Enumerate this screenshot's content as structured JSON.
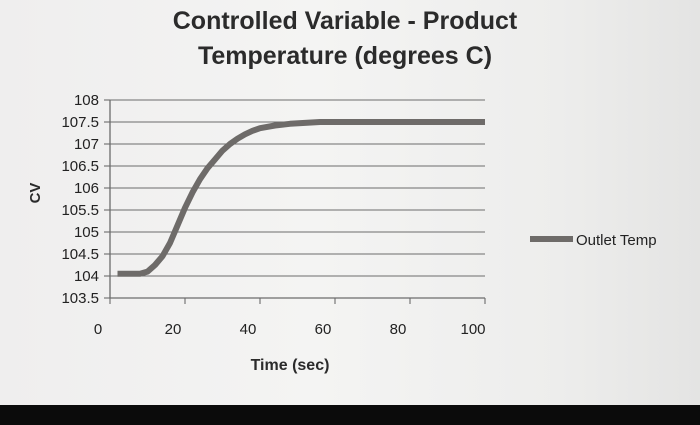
{
  "chart_data": {
    "type": "line",
    "title": [
      "Controlled Variable - Product",
      "Temperature (degrees C)"
    ],
    "xlabel": "Time (sec)",
    "ylabel": "CV",
    "xlim": [
      0,
      100
    ],
    "ylim": [
      103.5,
      108
    ],
    "x_ticks": [
      "0",
      "20",
      "40",
      "60",
      "80",
      "100"
    ],
    "y_ticks": [
      "103.5",
      "104",
      "104.5",
      "105",
      "105.5",
      "106",
      "106.5",
      "107",
      "107.5",
      "108"
    ],
    "grid": true,
    "legend_position": "right",
    "series": [
      {
        "name": "Outlet Temp",
        "color": "#6e6b69",
        "x": [
          2,
          8,
          10,
          12,
          14,
          16,
          18,
          20,
          22,
          24,
          26,
          28,
          30,
          32,
          34,
          36,
          38,
          40,
          44,
          48,
          52,
          56,
          60,
          70,
          80,
          90,
          100
        ],
        "y": [
          104.05,
          104.05,
          104.1,
          104.25,
          104.45,
          104.75,
          105.15,
          105.55,
          105.9,
          106.2,
          106.45,
          106.65,
          106.85,
          107.0,
          107.12,
          107.22,
          107.3,
          107.36,
          107.42,
          107.46,
          107.48,
          107.5,
          107.5,
          107.5,
          107.5,
          107.5,
          107.5
        ]
      }
    ]
  }
}
